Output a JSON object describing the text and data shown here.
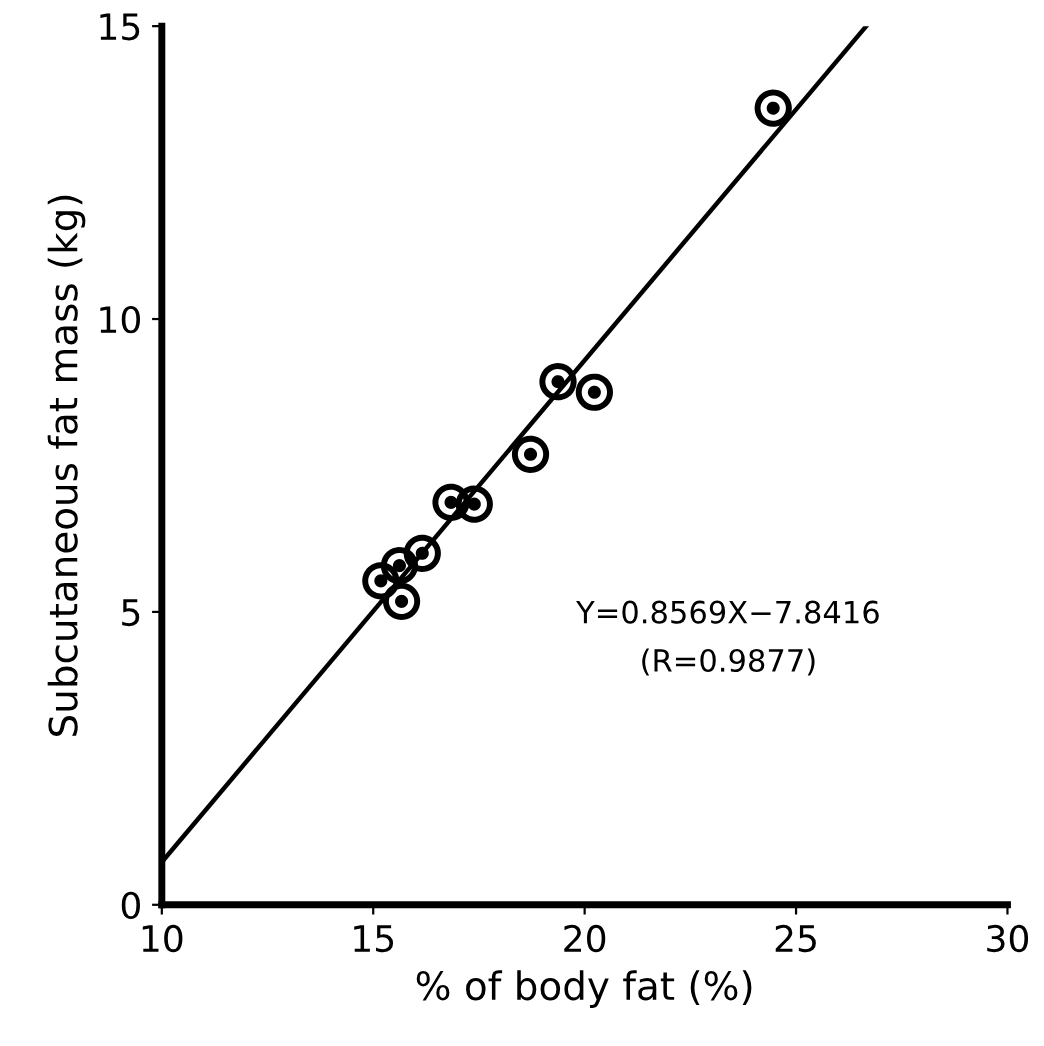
{
  "chart_data": {
    "type": "scatter",
    "xlabel": "% of body fat (%)",
    "ylabel": "Subcutaneous fat mass (kg)",
    "xlim": [
      10,
      30
    ],
    "ylim": [
      0,
      15
    ],
    "xticks": [
      10,
      15,
      20,
      25,
      30
    ],
    "yticks": [
      0,
      5,
      10,
      15
    ],
    "grid": false,
    "legend": false,
    "series": [
      {
        "marker": "circle",
        "color": "#000000",
        "x": [
          24.46,
          19.37,
          20.23,
          18.72,
          16.84,
          17.39,
          16.16,
          15.18,
          15.62,
          15.67
        ],
        "values": [
          13.6,
          8.93,
          8.75,
          7.69,
          6.87,
          6.84,
          6.0,
          5.53,
          5.79,
          5.18
        ]
      },
      {
        "type": "line",
        "marker": "none",
        "color": "#000000",
        "line_style": "solid",
        "x": [
          10,
          26.66
        ],
        "values": [
          0.73,
          15.0
        ]
      }
    ],
    "annotations": [
      "Y=0.8569X−7.8416",
      "(R=0.9877)"
    ]
  }
}
